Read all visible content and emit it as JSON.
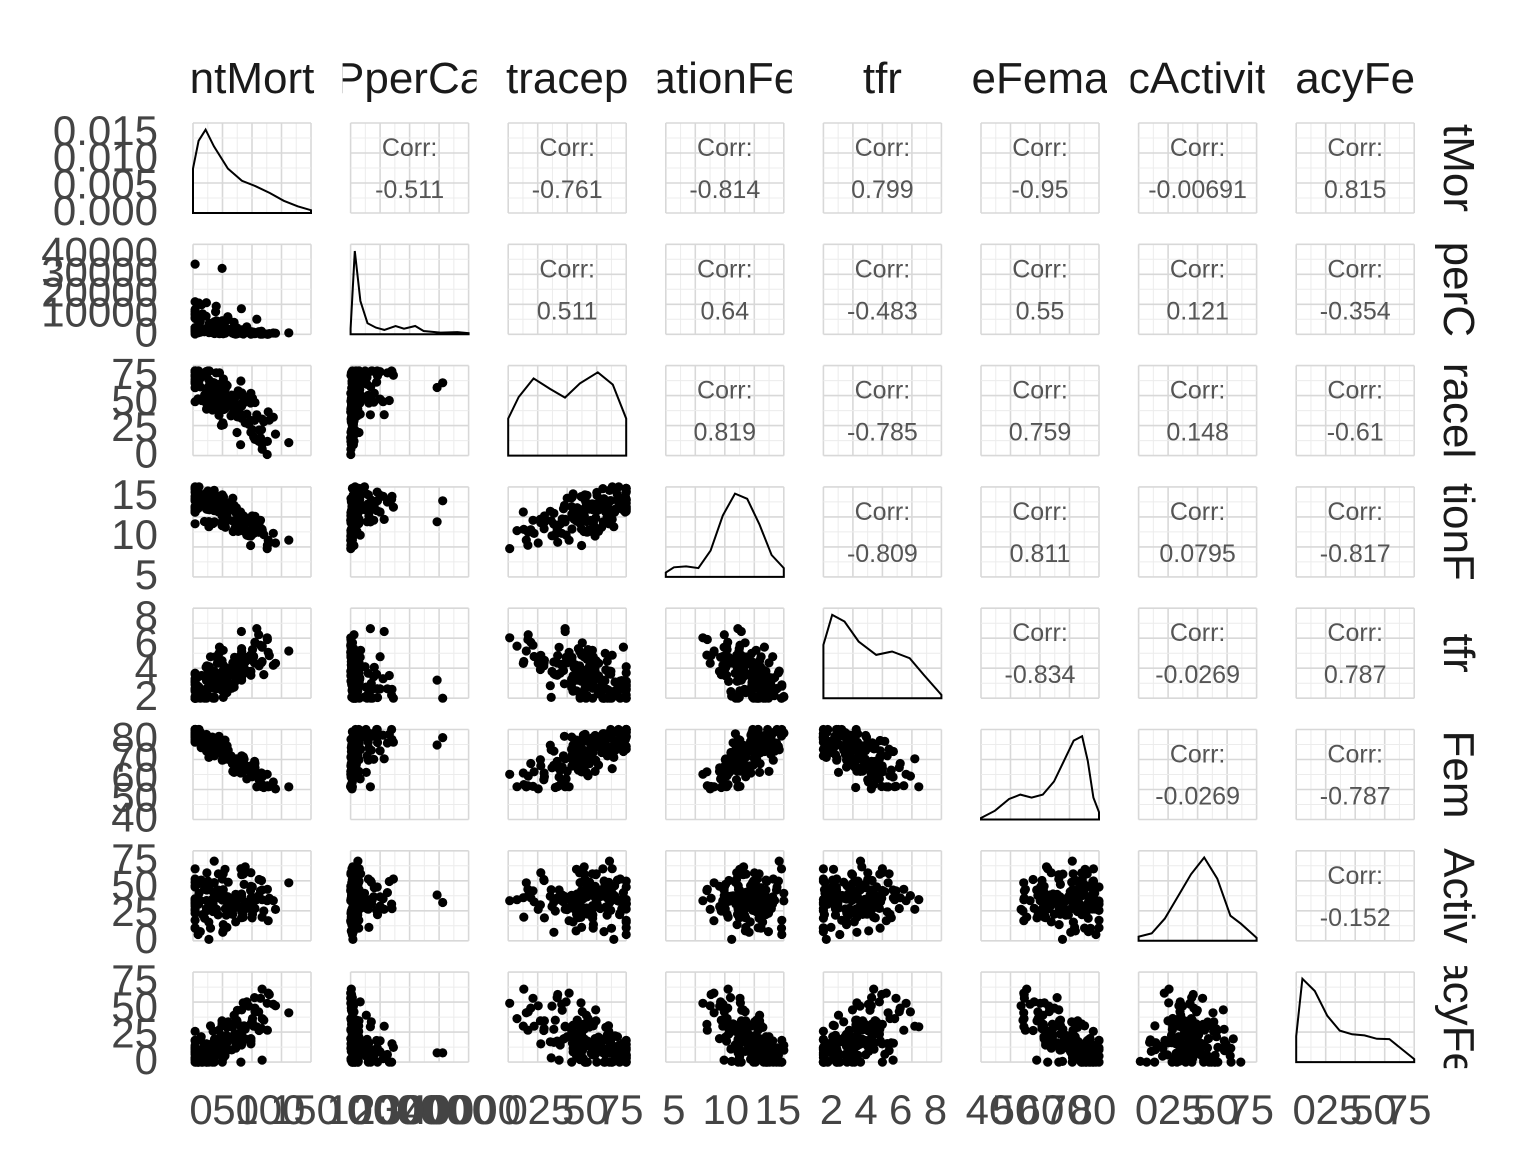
{
  "chart_data": {
    "type": "scatter",
    "title": "",
    "variables": [
      "infantMortality",
      "GDPperCapita",
      "contraception",
      "educationFemale",
      "tfr",
      "lifeFemale",
      "economicActivityFemale",
      "illiteracyFemale"
    ],
    "strip_labels_top": [
      "ntMort",
      "PperCa",
      "tracep",
      "ationFe",
      "tfr",
      "eFema",
      "cActivit",
      "acyFe"
    ],
    "strip_labels_right": [
      "tMor",
      "perC",
      "racel",
      "tionF",
      "tfr",
      "Fem",
      "Activ",
      "acyFe"
    ],
    "corr_label": "Corr:",
    "correlations": [
      [
        null,
        "-0.511",
        "-0.761",
        "-0.814",
        "0.799",
        "-0.95",
        "-0.00691",
        "0.815"
      ],
      [
        null,
        null,
        "0.511",
        "0.64",
        "-0.483",
        "0.55",
        "0.121",
        "-0.354"
      ],
      [
        null,
        null,
        null,
        "0.819",
        "-0.785",
        "0.759",
        "0.148",
        "-0.61"
      ],
      [
        null,
        null,
        null,
        null,
        "-0.809",
        "0.811",
        "0.0795",
        "-0.817"
      ],
      [
        null,
        null,
        null,
        null,
        null,
        "-0.834",
        "-0.0269",
        "0.787"
      ],
      [
        null,
        null,
        null,
        null,
        null,
        null,
        "-0.0269",
        "-0.787"
      ],
      [
        null,
        null,
        null,
        null,
        null,
        null,
        null,
        "-0.152"
      ],
      [
        null,
        null,
        null,
        null,
        null,
        null,
        null,
        null
      ]
    ],
    "y_tick_labels": [
      [
        "0.015",
        "0.010",
        "0.005",
        "0.000"
      ],
      [
        "40000",
        "30000",
        "20000",
        "10000",
        "0"
      ],
      [
        "75",
        "50",
        "25",
        "0"
      ],
      [
        "15",
        "10",
        "5"
      ],
      [
        "8",
        "6",
        "4",
        "2"
      ],
      [
        "80",
        "70",
        "60",
        "50",
        "40"
      ],
      [
        "75",
        "50",
        "25",
        "0"
      ],
      [
        "75",
        "50",
        "25",
        "0"
      ]
    ],
    "x_tick_labels": [
      [
        "0",
        "50",
        "100",
        "150"
      ],
      [
        "0",
        "10000",
        "20000",
        "30000",
        "40000"
      ],
      [
        "0",
        "25",
        "50",
        "75"
      ],
      [
        "5",
        "10",
        "15"
      ],
      [
        "2",
        "4",
        "6",
        "8"
      ],
      [
        "40",
        "50",
        "60",
        "70",
        "80"
      ],
      [
        "0",
        "25",
        "50",
        "75"
      ],
      [
        "0",
        "25",
        "50",
        "75"
      ]
    ],
    "x_ranges": [
      [
        0,
        169
      ],
      [
        0,
        42000
      ],
      [
        0,
        79
      ],
      [
        3,
        17.5
      ],
      [
        1.3,
        8
      ],
      [
        40,
        82
      ],
      [
        0,
        90
      ],
      [
        0,
        95
      ]
    ],
    "y_ranges": [
      [
        0,
        0.0155
      ],
      [
        0,
        42000
      ],
      [
        0,
        84
      ],
      [
        3,
        17.5
      ],
      [
        1.3,
        8.3
      ],
      [
        40,
        82
      ],
      [
        0,
        88
      ],
      [
        0,
        86
      ]
    ],
    "densities": [
      [
        [
          0,
          0.008
        ],
        [
          8,
          0.013
        ],
        [
          18,
          0.015
        ],
        [
          30,
          0.012
        ],
        [
          50,
          0.008
        ],
        [
          70,
          0.0058
        ],
        [
          90,
          0.0048
        ],
        [
          110,
          0.0036
        ],
        [
          130,
          0.0022
        ],
        [
          150,
          0.0012
        ],
        [
          169,
          0.0005
        ]
      ],
      [
        [
          0,
          5e-06
        ],
        [
          1500,
          7.5e-05
        ],
        [
          3500,
          3e-05
        ],
        [
          6000,
          1e-05
        ],
        [
          9000,
          6e-06
        ],
        [
          12000,
          4e-06
        ],
        [
          16000,
          7.5e-06
        ],
        [
          19000,
          5e-06
        ],
        [
          23000,
          7.5e-06
        ],
        [
          26000,
          3e-06
        ],
        [
          32000,
          1.5e-06
        ],
        [
          38000,
          2e-06
        ],
        [
          42000,
          1e-06
        ]
      ],
      [
        [
          0,
          0.006
        ],
        [
          7,
          0.0095
        ],
        [
          17,
          0.0125
        ],
        [
          28,
          0.0108
        ],
        [
          38,
          0.0094
        ],
        [
          48,
          0.0117
        ],
        [
          60,
          0.0135
        ],
        [
          70,
          0.0115
        ],
        [
          79,
          0.006
        ]
      ],
      [
        [
          3,
          0.01
        ],
        [
          4,
          0.022
        ],
        [
          5.5,
          0.024
        ],
        [
          7,
          0.02
        ],
        [
          8.5,
          0.06
        ],
        [
          10,
          0.14
        ],
        [
          11.5,
          0.19
        ],
        [
          13,
          0.178
        ],
        [
          14.5,
          0.12
        ],
        [
          16,
          0.05
        ],
        [
          17.5,
          0.02
        ]
      ],
      [
        [
          1.3,
          0.16
        ],
        [
          1.8,
          0.25
        ],
        [
          2.5,
          0.23
        ],
        [
          3.3,
          0.17
        ],
        [
          4.3,
          0.13
        ],
        [
          5.2,
          0.14
        ],
        [
          6.2,
          0.12
        ],
        [
          7,
          0.07
        ],
        [
          8,
          0.01
        ]
      ],
      [
        [
          40,
          0.001
        ],
        [
          45,
          0.006
        ],
        [
          50,
          0.014
        ],
        [
          54,
          0.017
        ],
        [
          58,
          0.015
        ],
        [
          62,
          0.017
        ],
        [
          66,
          0.026
        ],
        [
          70,
          0.042
        ],
        [
          73,
          0.054
        ],
        [
          76,
          0.057
        ],
        [
          78,
          0.04
        ],
        [
          80,
          0.015
        ],
        [
          82,
          0.005
        ]
      ],
      [
        [
          0,
          0.0014
        ],
        [
          10,
          0.0025
        ],
        [
          20,
          0.0075
        ],
        [
          30,
          0.015
        ],
        [
          40,
          0.0225
        ],
        [
          50,
          0.0282
        ],
        [
          60,
          0.021
        ],
        [
          70,
          0.0085
        ],
        [
          78,
          0.0058
        ],
        [
          90,
          0.001
        ]
      ],
      [
        [
          0,
          0.007
        ],
        [
          5,
          0.0225
        ],
        [
          15,
          0.0192
        ],
        [
          25,
          0.0125
        ],
        [
          35,
          0.0085
        ],
        [
          45,
          0.0075
        ],
        [
          55,
          0.0072
        ],
        [
          65,
          0.0063
        ],
        [
          75,
          0.0062
        ],
        [
          85,
          0.0035
        ],
        [
          95,
          0.0008
        ]
      ]
    ]
  }
}
